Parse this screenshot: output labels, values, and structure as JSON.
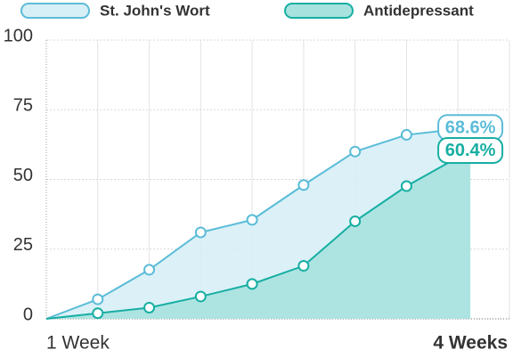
{
  "chart_data": {
    "type": "area",
    "x": [
      0,
      1,
      2,
      3,
      4,
      5,
      6,
      7,
      8.24
    ],
    "xlim": [
      0,
      9
    ],
    "xticks": [
      {
        "value": 0,
        "label": "1 Week"
      },
      {
        "value": 9,
        "label": "4 Weeks"
      }
    ],
    "ylim": [
      0,
      100
    ],
    "yticks": [
      0,
      25,
      50,
      75,
      100
    ],
    "grid": true,
    "legend": "top",
    "series": [
      {
        "name": "St. John's Wort",
        "color": "#5bbcd8",
        "fill": "#d7eff6",
        "values": [
          0,
          7,
          17.6,
          31,
          35.5,
          48,
          60,
          66,
          68.6
        ],
        "value_labels": [
          null,
          null,
          null,
          null,
          null,
          null,
          null,
          null,
          "68.6%"
        ]
      },
      {
        "name": "Antidepressant",
        "color": "#17aea3",
        "fill": "#a7e2df",
        "values": [
          0,
          2,
          4,
          8,
          12.5,
          19,
          35,
          47.6,
          60.4
        ],
        "value_labels": [
          null,
          null,
          null,
          null,
          null,
          null,
          null,
          null,
          "60.4%"
        ]
      }
    ]
  }
}
